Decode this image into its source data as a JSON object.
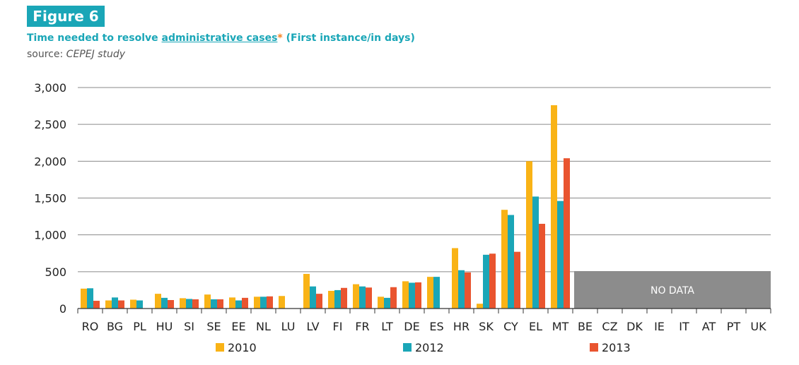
{
  "figure_label": "Figure 6",
  "title": {
    "prefix": "Time needed to resolve ",
    "link_text": "administrative cases",
    "star": "*",
    "suffix": " (First instance/in days)"
  },
  "source": {
    "label": "source: ",
    "value": "CEPEJ study"
  },
  "chart_data": {
    "type": "bar",
    "categories": [
      "RO",
      "BG",
      "PL",
      "HU",
      "SI",
      "SE",
      "EE",
      "NL",
      "LU",
      "LV",
      "FI",
      "FR",
      "LT",
      "DE",
      "ES",
      "HR",
      "SK",
      "CY",
      "EL",
      "MT",
      "BE",
      "CZ",
      "DK",
      "IE",
      "IT",
      "AT",
      "PT",
      "UK"
    ],
    "series": [
      {
        "name": "2010",
        "color": "#f9b316",
        "values": [
          270,
          110,
          120,
          200,
          140,
          190,
          150,
          160,
          170,
          470,
          240,
          330,
          160,
          370,
          430,
          820,
          65,
          1340,
          2000,
          2760,
          null,
          null,
          null,
          null,
          null,
          null,
          null,
          null
        ]
      },
      {
        "name": "2012",
        "color": "#1aa6b7",
        "values": [
          275,
          150,
          110,
          145,
          130,
          125,
          110,
          160,
          null,
          300,
          250,
          300,
          145,
          350,
          430,
          520,
          730,
          1270,
          1520,
          1460,
          null,
          null,
          null,
          null,
          null,
          null,
          null,
          null
        ]
      },
      {
        "name": "2013",
        "color": "#e9542f",
        "values": [
          105,
          110,
          null,
          115,
          125,
          125,
          145,
          165,
          null,
          200,
          280,
          285,
          290,
          355,
          null,
          490,
          745,
          770,
          1150,
          2040,
          null,
          null,
          null,
          null,
          null,
          null,
          null,
          null
        ]
      }
    ],
    "ylim": [
      0,
      3000
    ],
    "y_ticks": [
      "0",
      "500",
      "1,000",
      "1,500",
      "2,000",
      "2,500",
      "3,000"
    ],
    "grid": true,
    "no_data_label": "NO DATA",
    "no_data_categories": [
      "BE",
      "CZ",
      "DK",
      "IE",
      "IT",
      "AT",
      "PT",
      "UK"
    ],
    "no_data_color": "#8c8c8c",
    "legend_position": "bottom"
  }
}
